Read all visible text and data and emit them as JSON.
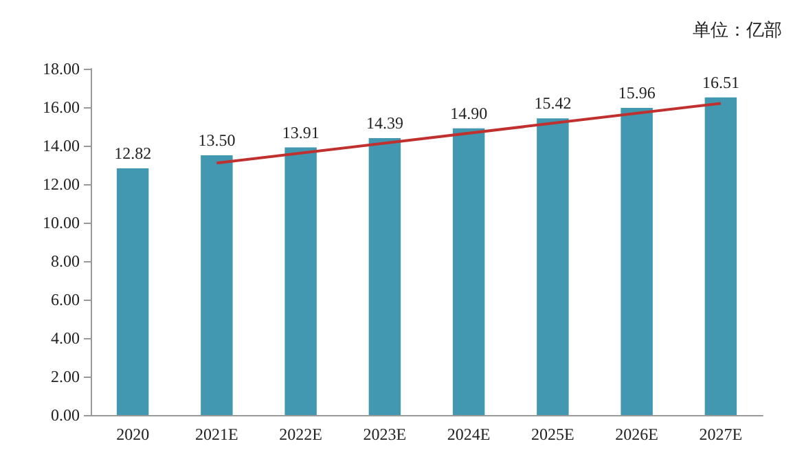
{
  "chart_data": {
    "type": "bar",
    "categories": [
      "2020",
      "2021E",
      "2022E",
      "2023E",
      "2024E",
      "2025E",
      "2026E",
      "2027E"
    ],
    "series": [
      {
        "color": "#4198b0",
        "values": [
          12.82,
          13.5,
          13.91,
          14.39,
          14.9,
          15.42,
          15.96,
          16.51
        ],
        "value_labels": [
          "12.82",
          "13.50",
          "13.91",
          "14.39",
          "14.90",
          "15.42",
          "15.96",
          "16.51"
        ]
      },
      {
        "type": "line",
        "color": "#c0302f",
        "x": [
          "2021E",
          "2027E"
        ],
        "values": [
          13.1,
          16.2
        ]
      }
    ],
    "ylim": [
      0,
      18
    ],
    "yticks": [
      {
        "value": 0,
        "label": "0.00"
      },
      {
        "value": 2,
        "label": "2.00"
      },
      {
        "value": 4,
        "label": "4.00"
      },
      {
        "value": 6,
        "label": "6.00"
      },
      {
        "value": 8,
        "label": "8.00"
      },
      {
        "value": 10,
        "label": "10.00"
      },
      {
        "value": 12,
        "label": "12.00"
      },
      {
        "value": 14,
        "label": "14.00"
      },
      {
        "value": 16,
        "label": "16.00"
      },
      {
        "value": 18,
        "label": "18.00"
      }
    ],
    "annotations": [
      "单位：亿部"
    ],
    "grid": false,
    "marker": "none"
  }
}
